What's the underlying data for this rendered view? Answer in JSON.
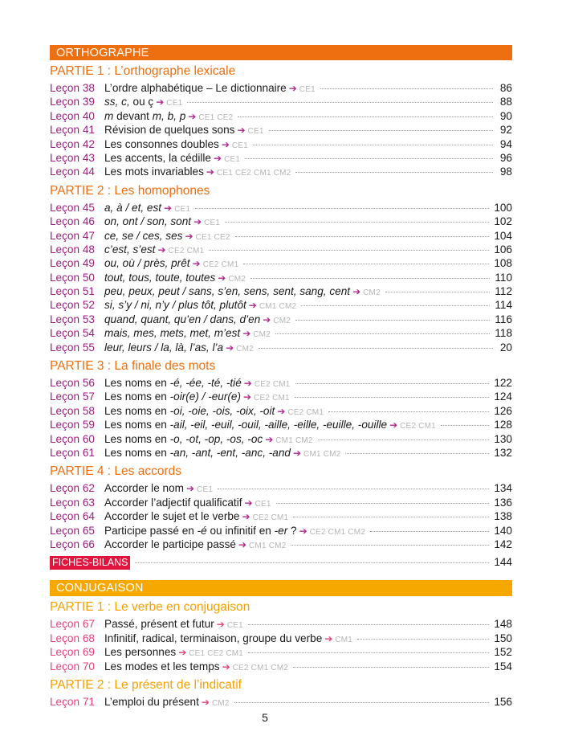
{
  "colors": {
    "orthographe_bar": "#ee6f10",
    "orthographe_partie": "#ee6f10",
    "orthographe_lecon": "#9c1f7c",
    "orthographe_arrow": "#b0288e",
    "conjugaison_bar": "#f7a800",
    "conjugaison_partie": "#f5a100",
    "conjugaison_lecon": "#e6407f",
    "conjugaison_arrow": "#e6407f",
    "fiches": "#e0143c"
  },
  "arrow_icon": "arrow-right-icon",
  "arrow_glyph": "➔",
  "blocks": [
    {
      "key": "orthographe",
      "title": "ORTHOGRAPHE",
      "parties": [
        {
          "title": "PARTIE 1 : L’orthographe lexicale",
          "lecons": [
            {
              "label": "Leçon 38",
              "title": [
                {
                  "t": "L’ordre alphabétique – Le dictionnaire",
                  "i": false
                }
              ],
              "levels": "CE1",
              "page": "86"
            },
            {
              "label": "Leçon 39",
              "title": [
                {
                  "t": "ss, c,",
                  "i": true
                },
                {
                  "t": " ou ç",
                  "i": false
                }
              ],
              "levels": "CE1",
              "page": "88"
            },
            {
              "label": "Leçon 40",
              "title": [
                {
                  "t": "m",
                  "i": true
                },
                {
                  "t": " devant ",
                  "i": false
                },
                {
                  "t": "m, b, p",
                  "i": true
                }
              ],
              "levels": "CE1 CE2",
              "page": "90"
            },
            {
              "label": "Leçon 41",
              "title": [
                {
                  "t": "Révision de quelques sons",
                  "i": false
                }
              ],
              "levels": "CE1",
              "page": "92"
            },
            {
              "label": "Leçon 42",
              "title": [
                {
                  "t": "Les consonnes doubles",
                  "i": false
                }
              ],
              "levels": "CE1",
              "page": "94"
            },
            {
              "label": "Leçon 43",
              "title": [
                {
                  "t": "Les accents, la cédille",
                  "i": false
                }
              ],
              "levels": "CE1",
              "page": "96"
            },
            {
              "label": "Leçon 44",
              "title": [
                {
                  "t": "Les mots invariables",
                  "i": false
                }
              ],
              "levels": "CE1 CE2 CM1 CM2",
              "page": "98"
            }
          ]
        },
        {
          "title": "PARTIE 2 : Les homophones",
          "lecons": [
            {
              "label": "Leçon 45",
              "title": [
                {
                  "t": "a, à / et, est",
                  "i": true
                }
              ],
              "levels": "CE1",
              "page": "100"
            },
            {
              "label": "Leçon 46",
              "title": [
                {
                  "t": "on, ont / son, sont",
                  "i": true
                }
              ],
              "levels": "CE1",
              "page": "102"
            },
            {
              "label": "Leçon 47",
              "title": [
                {
                  "t": "ce, se / ces, ses",
                  "i": true
                }
              ],
              "levels": "CE1 CE2",
              "page": "104"
            },
            {
              "label": "Leçon 48",
              "title": [
                {
                  "t": "c’est, s’est",
                  "i": true
                }
              ],
              "levels": "CE2 CM1",
              "page": "106"
            },
            {
              "label": "Leçon 49",
              "title": [
                {
                  "t": "ou, où  / près, prêt",
                  "i": true
                }
              ],
              "levels": "CE2 CM1",
              "page": "108"
            },
            {
              "label": "Leçon 50",
              "title": [
                {
                  "t": "tout, tous, toute, toutes",
                  "i": true
                }
              ],
              "levels": "CM2",
              "page": "110"
            },
            {
              "label": "Leçon 51",
              "title": [
                {
                  "t": "peu, peux, peut / sans, s’en, sens, sent, sang, cent",
                  "i": true
                }
              ],
              "levels": "CM2",
              "page": "112"
            },
            {
              "label": "Leçon 52",
              "title": [
                {
                  "t": "si, s’y / ni, n’y / plus tôt, plutôt",
                  "i": true
                }
              ],
              "levels": "CM1 CM2",
              "page": "114"
            },
            {
              "label": "Leçon 53",
              "title": [
                {
                  "t": "quand, quant, qu’en / dans, d’en",
                  "i": true
                }
              ],
              "levels": "CM2",
              "page": "116"
            },
            {
              "label": "Leçon 54",
              "title": [
                {
                  "t": "mais, mes, mets, met, m’est",
                  "i": true
                }
              ],
              "levels": "CM2",
              "page": "118"
            },
            {
              "label": "Leçon 55",
              "title": [
                {
                  "t": "leur, leurs / la, là, l’as, l’a",
                  "i": true
                }
              ],
              "levels": "CM2",
              "page": "20"
            }
          ]
        },
        {
          "title": "PARTIE 3 : La finale des mots",
          "lecons": [
            {
              "label": "Leçon 56",
              "title": [
                {
                  "t": "Les noms en ",
                  "i": false
                },
                {
                  "t": "-é, -ée, -té, -tié",
                  "i": true
                }
              ],
              "levels": "CE2 CM1",
              "page": "122"
            },
            {
              "label": "Leçon 57",
              "title": [
                {
                  "t": "Les noms en ",
                  "i": false
                },
                {
                  "t": "-oir(e) / -eur(e)",
                  "i": true
                }
              ],
              "levels": "CE2 CM1",
              "page": "124"
            },
            {
              "label": "Leçon 58",
              "title": [
                {
                  "t": "Les noms en ",
                  "i": false
                },
                {
                  "t": "-oi, -oie, -ois, -oix, -oit",
                  "i": true
                }
              ],
              "levels": "CE2 CM1",
              "page": "126"
            },
            {
              "label": "Leçon 59",
              "title": [
                {
                  "t": "Les noms en ",
                  "i": false
                },
                {
                  "t": "-ail, -eil, -euil, -ouil, -aille, -eille, -euille, -ouille",
                  "i": true
                }
              ],
              "levels": "CE2 CM1",
              "page": "128"
            },
            {
              "label": "Leçon 60",
              "title": [
                {
                  "t": "Les noms en ",
                  "i": false
                },
                {
                  "t": "-o, -ot, -op, -os, -oc",
                  "i": true
                }
              ],
              "levels": "CM1 CM2",
              "page": "130"
            },
            {
              "label": "Leçon 61",
              "title": [
                {
                  "t": "Les noms en ",
                  "i": false
                },
                {
                  "t": "-an, -ant, -ent, -anc, -and",
                  "i": true
                }
              ],
              "levels": "CM1 CM2",
              "page": "132"
            }
          ]
        },
        {
          "title": "PARTIE  4 : Les accords",
          "lecons": [
            {
              "label": "Leçon 62",
              "title": [
                {
                  "t": "Accorder le nom",
                  "i": false
                }
              ],
              "levels": "CE1",
              "page": "134"
            },
            {
              "label": "Leçon 63",
              "title": [
                {
                  "t": "Accorder l’adjectif qualificatif",
                  "i": false
                }
              ],
              "levels": "CE1",
              "page": "136"
            },
            {
              "label": "Leçon 64",
              "title": [
                {
                  "t": "Accorder le sujet et le verbe",
                  "i": false
                }
              ],
              "levels": "CE2 CM1",
              "page": "138"
            },
            {
              "label": "Leçon 65",
              "title": [
                {
                  "t": "Participe passé en ",
                  "i": false
                },
                {
                  "t": "-é",
                  "i": true
                },
                {
                  "t": " ou infinitif en ",
                  "i": false
                },
                {
                  "t": "-er",
                  "i": true
                },
                {
                  "t": " ?",
                  "i": false
                }
              ],
              "levels": "CE2 CM1 CM2",
              "page": "140"
            },
            {
              "label": "Leçon 66",
              "title": [
                {
                  "t": "Accorder le participe passé",
                  "i": false
                }
              ],
              "levels": "CM1 CM2",
              "page": "142"
            }
          ]
        }
      ],
      "fiches": {
        "label": "FICHES-BILANS",
        "page": "144"
      }
    },
    {
      "key": "conjugaison",
      "title": "CONJUGAISON",
      "parties": [
        {
          "title": "PARTIE 1 : Le verbe en conjugaison",
          "lecons": [
            {
              "label": "Leçon 67",
              "title": [
                {
                  "t": "Passé, présent et futur",
                  "i": false
                }
              ],
              "levels": "CE1",
              "page": "148"
            },
            {
              "label": "Leçon 68",
              "title": [
                {
                  "t": "Infinitif, radical, terminaison, groupe du verbe",
                  "i": false
                }
              ],
              "levels": "CM1",
              "page": "150"
            },
            {
              "label": "Leçon 69",
              "title": [
                {
                  "t": "Les personnes",
                  "i": false
                }
              ],
              "levels": "CE1 CE2 CM1",
              "page": "152"
            },
            {
              "label": "Leçon 70",
              "title": [
                {
                  "t": "Les modes et les temps",
                  "i": false
                }
              ],
              "levels": "CE2 CM1 CM2",
              "page": "154"
            }
          ]
        },
        {
          "title": "PARTIE 2 : Le présent de l’indicatif",
          "lecons": [
            {
              "label": "Leçon 71",
              "title": [
                {
                  "t": "L’emploi du présent",
                  "i": false
                }
              ],
              "levels": "CM2",
              "page": "156"
            }
          ]
        }
      ]
    }
  ],
  "page_number": "5"
}
